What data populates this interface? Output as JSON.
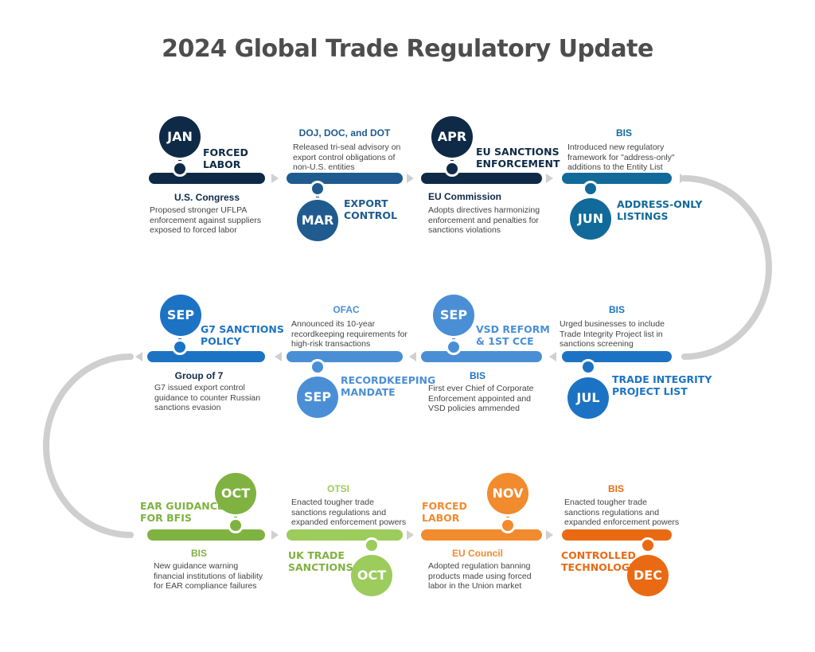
{
  "title": "2024 Global Trade Regulatory Update",
  "colors": {
    "navy": "#0f2a47",
    "blue": "#1f5b8f",
    "teal": "#116a99",
    "row2": "#1c73c4",
    "lightblue": "#4a8fd6",
    "green": "#7fb241",
    "lightgreen": "#9ccc5c",
    "orange": "#f28a2e",
    "darkorange": "#ea6a13",
    "connector": "#cfcfcf",
    "arrow": "#d0d0d0"
  },
  "milestones": [
    {
      "id": "jan",
      "month": "JAN",
      "headline": [
        "FORCED",
        "LABOR"
      ],
      "agency": "U.S. Congress",
      "description": [
        "Proposed stronger UFLPA",
        "enforcement against suppliers",
        "exposed to forced labor"
      ]
    },
    {
      "id": "mar",
      "month": "MAR",
      "headline": [
        "EXPORT",
        "CONTROL"
      ],
      "agency": "DOJ, DOC, and DOT",
      "description": [
        "Released tri-seal advisory on",
        "export control obligations of",
        "non-U.S. entities"
      ]
    },
    {
      "id": "apr",
      "month": "APR",
      "headline": [
        "EU SANCTIONS",
        "ENFORCEMENT"
      ],
      "agency": "EU Commission",
      "description": [
        "Adopts directives harmonizing",
        "enforcement and penalties for",
        "sanctions violations"
      ]
    },
    {
      "id": "jun",
      "month": "JUN",
      "headline": [
        "ADDRESS-ONLY",
        "LISTINGS"
      ],
      "agency": "BIS",
      "description": [
        "Introduced new regulatory",
        "framework for \"address-only\"",
        "additions to the Entity List"
      ]
    },
    {
      "id": "jul",
      "month": "JUL",
      "headline": [
        "TRADE INTEGRITY",
        "PROJECT LIST"
      ],
      "agency": "BIS",
      "description": [
        "Urged businesses to include",
        "Trade Integrity Project list in",
        "sanctions screening"
      ]
    },
    {
      "id": "sep-vsd",
      "month": "SEP",
      "headline": [
        "VSD REFORM",
        "& 1ST CCE"
      ],
      "agency": "BIS",
      "description": [
        "First ever Chief of Corporate",
        "Enforcement appointed and",
        "VSD policies  ammended"
      ]
    },
    {
      "id": "sep-rec",
      "month": "SEP",
      "headline": [
        "RECORDKEEPING",
        "MANDATE"
      ],
      "agency": "OFAC",
      "description": [
        "Announced its 10-year",
        "recordkeeping requirements for",
        "high-risk transactions"
      ]
    },
    {
      "id": "sep-g7",
      "month": "SEP",
      "headline": [
        "G7 SANCTIONS",
        "POLICY"
      ],
      "agency": "Group of 7",
      "description": [
        "G7 issued export control",
        "guidance to counter Russian",
        "sanctions evasion"
      ]
    },
    {
      "id": "oct-ear",
      "month": "OCT",
      "headline": [
        "EAR GUIDANCE",
        "FOR BFIS"
      ],
      "agency": "BIS",
      "description": [
        "New guidance warning",
        "financial institutions of liability",
        "for EAR compliance failures"
      ]
    },
    {
      "id": "oct-uk",
      "month": "OCT",
      "headline": [
        "UK TRADE",
        "SANCTIONS"
      ],
      "agency": "OTSI",
      "description": [
        "Enacted tougher trade",
        "sanctions regulations and",
        "expanded enforcement powers"
      ]
    },
    {
      "id": "nov",
      "month": "NOV",
      "headline": [
        "FORCED",
        "LABOR"
      ],
      "agency": "EU Council",
      "description": [
        "Adopted regulation banning",
        "products made using forced",
        "labor in the Union market"
      ]
    },
    {
      "id": "dec",
      "month": "DEC",
      "headline": [
        "CONTROLLED",
        "TECHNOLOGY"
      ],
      "agency": "BIS",
      "description": [
        "Enacted tougher trade",
        "sanctions regulations and",
        "expanded enforcement powers"
      ]
    }
  ]
}
